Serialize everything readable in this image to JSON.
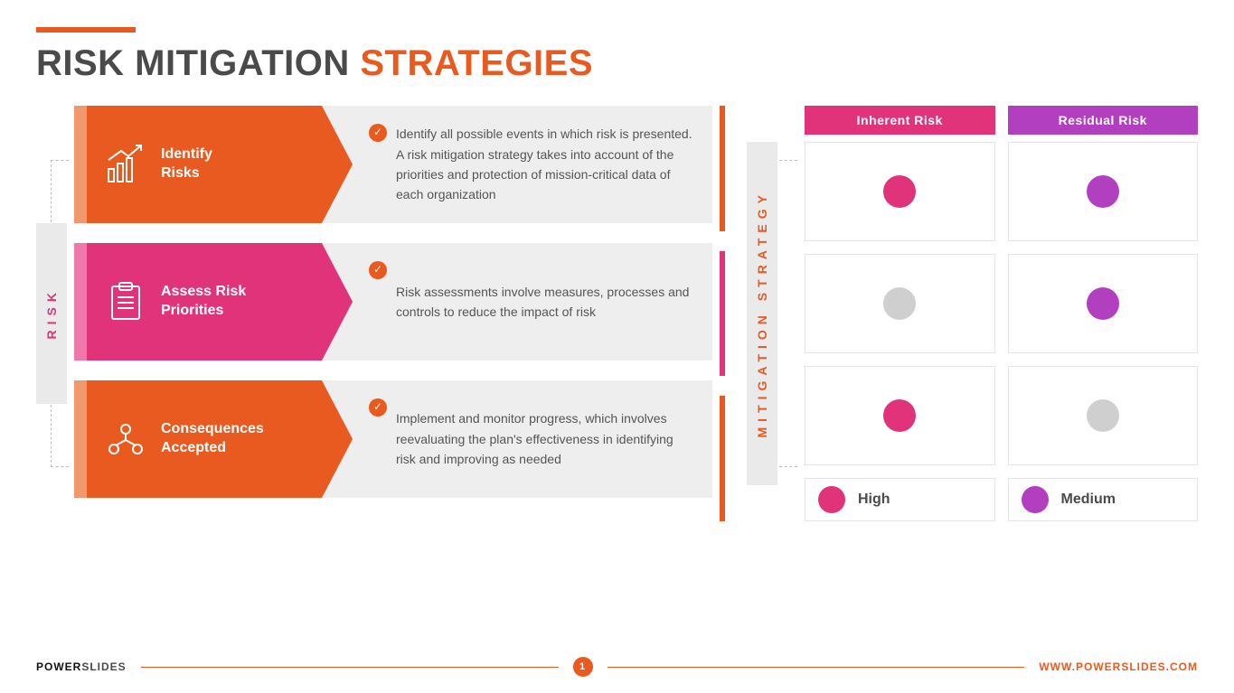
{
  "colors": {
    "orange": "#e85a1f",
    "orange_light": "#f2986e",
    "magenta": "#e0337a",
    "magenta_light": "#ef7aa9",
    "purple": "#b23fc0",
    "gray_light": "#eeeeee",
    "gray_dot": "#cfcfcf",
    "text_dark": "#4a4a4a",
    "border": "#e4e4e4"
  },
  "title": {
    "word1": "RISK MITIGATION",
    "word2": "STRATEGIES",
    "bar_color": "#e85a1f"
  },
  "side_labels": {
    "left": "RISK",
    "right": "MITIGATION STRATEGY"
  },
  "rows": [
    {
      "id": "identify",
      "color": "#e85a1f",
      "edge_color": "#f2986e",
      "title": "Identify\nRisks",
      "icon": "chart-up-icon",
      "desc": "Identify all possible events in which risk is presented. A risk mitigation strategy takes into account of the priorities and protection of mission-critical data of each organization",
      "check_color": "#e85a1f"
    },
    {
      "id": "assess",
      "color": "#e0337a",
      "edge_color": "#ef7aa9",
      "title": "Assess Risk\nPriorities",
      "icon": "clipboard-icon",
      "desc": "Risk assessments involve measures, processes and controls to reduce the impact of risk",
      "check_color": "#e85a1f"
    },
    {
      "id": "consequences",
      "color": "#e85a1f",
      "edge_color": "#f2986e",
      "title": "Consequences\nAccepted",
      "icon": "network-people-icon",
      "desc": "Implement and monitor progress, which involves reevaluating the plan's effectiveness in identifying risk and improving as needed",
      "check_color": "#e85a1f"
    }
  ],
  "accent_bar_colors": [
    "#e85a1f",
    "#e0337a",
    "#e85a1f"
  ],
  "risk_table": {
    "type": "infographic",
    "headers": [
      {
        "label": "Inherent Risk",
        "bg": "#e0337a"
      },
      {
        "label": "Residual Risk",
        "bg": "#b23fc0"
      }
    ],
    "cells": [
      [
        "#e0337a",
        "#b23fc0"
      ],
      [
        "#cfcfcf",
        "#b23fc0"
      ],
      [
        "#e0337a",
        "#cfcfcf"
      ]
    ],
    "legend": [
      {
        "color": "#e0337a",
        "label": "High"
      },
      {
        "color": "#b23fc0",
        "label": "Medium"
      }
    ]
  },
  "footer": {
    "logo_bold": "POWER",
    "logo_light": "SLIDES",
    "page": "1",
    "url": "WWW.POWERSLIDES.COM"
  }
}
